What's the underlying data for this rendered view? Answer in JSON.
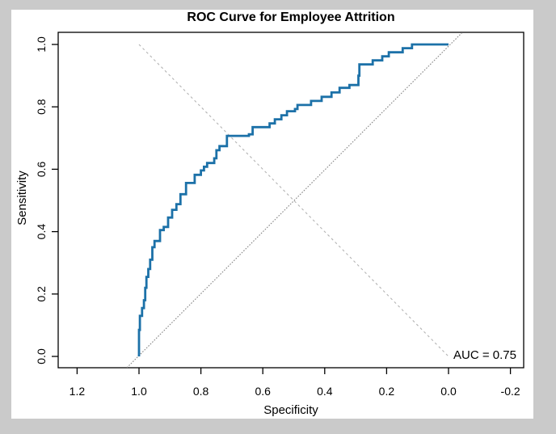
{
  "window": {
    "background_color": "#cacaca",
    "canvas_color": "#ffffff"
  },
  "chart_data": {
    "type": "line",
    "subtype": "roc-step-curve",
    "title": "ROC Curve for Employee Attrition",
    "xlabel": "Specificity",
    "ylabel": "Sensitivity",
    "x_axis_reversed": true,
    "x_ticks": [
      "1.2",
      "1.0",
      "0.8",
      "0.6",
      "0.4",
      "0.2",
      "0.0",
      "-0.2"
    ],
    "x_tick_values": [
      1.2,
      1.0,
      0.8,
      0.6,
      0.4,
      0.2,
      0.0,
      -0.2
    ],
    "y_ticks": [
      "0.0",
      "0.2",
      "0.4",
      "0.6",
      "0.8",
      "1.0"
    ],
    "y_tick_values": [
      0.0,
      0.2,
      0.4,
      0.6,
      0.8,
      1.0
    ],
    "xlim": [
      1.26,
      -0.24
    ],
    "ylim": [
      -0.036,
      1.039
    ],
    "grid": false,
    "legend": null,
    "auc": 0.75,
    "annotation": {
      "text": "AUC = 0.75",
      "x": -0.118,
      "y": 0.02
    },
    "curve_color": "#1c71a8",
    "curve_width": 2.8,
    "reference_lines": [
      {
        "name": "chance-diagonal-line",
        "style": "dotted",
        "color": "#858585",
        "from": [
          1.039,
          -0.036
        ],
        "to": [
          -0.0445,
          1.0385
        ]
      },
      {
        "name": "identity-diagonal-line",
        "style": "dashed",
        "color": "#b3b3b3",
        "from": [
          1.0,
          1.0
        ],
        "to": [
          0.0,
          0.0
        ]
      }
    ],
    "roc_points": [
      [
        1.0,
        0.0
      ],
      [
        1.0,
        0.085
      ],
      [
        0.997,
        0.085
      ],
      [
        0.997,
        0.13
      ],
      [
        0.99,
        0.13
      ],
      [
        0.99,
        0.155
      ],
      [
        0.984,
        0.155
      ],
      [
        0.984,
        0.18
      ],
      [
        0.98,
        0.18
      ],
      [
        0.98,
        0.22
      ],
      [
        0.976,
        0.22
      ],
      [
        0.976,
        0.255
      ],
      [
        0.97,
        0.255
      ],
      [
        0.97,
        0.28
      ],
      [
        0.964,
        0.28
      ],
      [
        0.964,
        0.31
      ],
      [
        0.957,
        0.31
      ],
      [
        0.957,
        0.35
      ],
      [
        0.95,
        0.35
      ],
      [
        0.95,
        0.37
      ],
      [
        0.932,
        0.37
      ],
      [
        0.932,
        0.405
      ],
      [
        0.92,
        0.405
      ],
      [
        0.92,
        0.415
      ],
      [
        0.906,
        0.415
      ],
      [
        0.906,
        0.445
      ],
      [
        0.893,
        0.445
      ],
      [
        0.893,
        0.47
      ],
      [
        0.879,
        0.47
      ],
      [
        0.879,
        0.488
      ],
      [
        0.866,
        0.488
      ],
      [
        0.866,
        0.52
      ],
      [
        0.848,
        0.52
      ],
      [
        0.848,
        0.556
      ],
      [
        0.82,
        0.556
      ],
      [
        0.82,
        0.582
      ],
      [
        0.8,
        0.582
      ],
      [
        0.8,
        0.596
      ],
      [
        0.79,
        0.596
      ],
      [
        0.79,
        0.608
      ],
      [
        0.78,
        0.608
      ],
      [
        0.78,
        0.62
      ],
      [
        0.757,
        0.62
      ],
      [
        0.757,
        0.635
      ],
      [
        0.75,
        0.635
      ],
      [
        0.75,
        0.661
      ],
      [
        0.74,
        0.661
      ],
      [
        0.74,
        0.674
      ],
      [
        0.716,
        0.674
      ],
      [
        0.716,
        0.707
      ],
      [
        0.645,
        0.707
      ],
      [
        0.645,
        0.712
      ],
      [
        0.633,
        0.712
      ],
      [
        0.633,
        0.735
      ],
      [
        0.578,
        0.735
      ],
      [
        0.578,
        0.747
      ],
      [
        0.561,
        0.747
      ],
      [
        0.561,
        0.76
      ],
      [
        0.54,
        0.76
      ],
      [
        0.54,
        0.773
      ],
      [
        0.522,
        0.773
      ],
      [
        0.522,
        0.786
      ],
      [
        0.496,
        0.786
      ],
      [
        0.496,
        0.793
      ],
      [
        0.488,
        0.793
      ],
      [
        0.488,
        0.806
      ],
      [
        0.444,
        0.806
      ],
      [
        0.444,
        0.819
      ],
      [
        0.41,
        0.819
      ],
      [
        0.41,
        0.832
      ],
      [
        0.378,
        0.832
      ],
      [
        0.378,
        0.846
      ],
      [
        0.352,
        0.846
      ],
      [
        0.352,
        0.861
      ],
      [
        0.32,
        0.861
      ],
      [
        0.32,
        0.87
      ],
      [
        0.291,
        0.87
      ],
      [
        0.291,
        0.9
      ],
      [
        0.288,
        0.9
      ],
      [
        0.288,
        0.936
      ],
      [
        0.245,
        0.936
      ],
      [
        0.245,
        0.949
      ],
      [
        0.214,
        0.949
      ],
      [
        0.214,
        0.962
      ],
      [
        0.193,
        0.962
      ],
      [
        0.193,
        0.975
      ],
      [
        0.148,
        0.975
      ],
      [
        0.148,
        0.988
      ],
      [
        0.118,
        0.988
      ],
      [
        0.118,
        1.0
      ],
      [
        0.0,
        1.0
      ]
    ]
  }
}
